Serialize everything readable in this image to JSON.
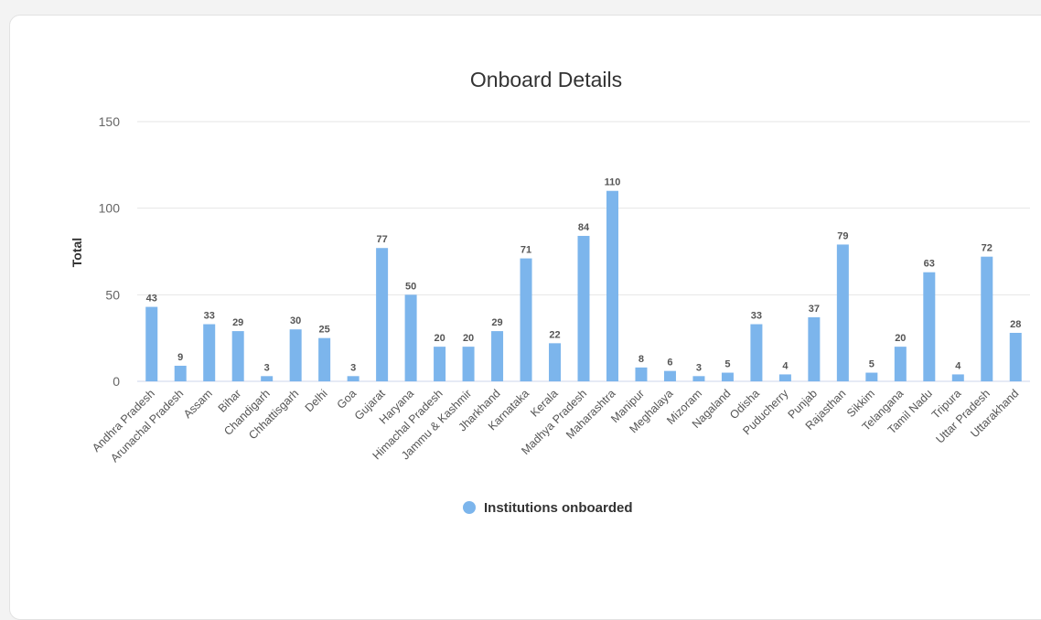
{
  "chart_data": {
    "type": "bar",
    "title": "Onboard Details",
    "xlabel": "",
    "ylabel": "Total",
    "ylim": [
      0,
      150
    ],
    "yticks": [
      0,
      50,
      100,
      150
    ],
    "grid": true,
    "legend_position": "bottom-center",
    "categories": [
      "Andhra Pradesh",
      "Arunachal Pradesh",
      "Assam",
      "Bihar",
      "Chandigarh",
      "Chhattisgarh",
      "Delhi",
      "Goa",
      "Gujarat",
      "Haryana",
      "Himachal Pradesh",
      "Jammu & Kashmir",
      "Jharkhand",
      "Karnataka",
      "Kerala",
      "Madhya Pradesh",
      "Maharashtra",
      "Manipur",
      "Meghalaya",
      "Mizoram",
      "Nagaland",
      "Odisha",
      "Puducherry",
      "Punjab",
      "Rajasthan",
      "Sikkim",
      "Telangana",
      "Tamil Nadu",
      "Tripura",
      "Uttar Pradesh",
      "Uttarakhand"
    ],
    "series": [
      {
        "name": "Institutions onboarded",
        "color": "#7cb5ec",
        "values": [
          43,
          9,
          33,
          29,
          3,
          30,
          25,
          3,
          77,
          50,
          20,
          20,
          29,
          71,
          22,
          84,
          110,
          8,
          6,
          3,
          5,
          33,
          4,
          37,
          79,
          5,
          20,
          63,
          4,
          72,
          28
        ]
      }
    ]
  },
  "colors": {
    "bar": "#7cb5ec",
    "grid": "#e6e6e6",
    "baseline": "#ccd6eb",
    "background": "#ffffff"
  }
}
